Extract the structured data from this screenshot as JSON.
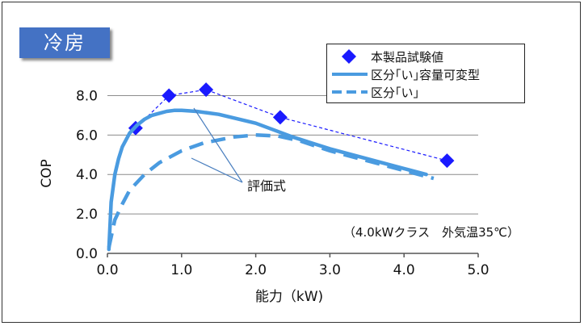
{
  "mode_badge": "冷房",
  "annotation_note": "（4.0kWクラス　外気温35℃）",
  "callout_label": "評価式",
  "legend": {
    "items": [
      {
        "label": "本製品試験値",
        "marker": "diamond",
        "color": "#1a1aff"
      },
      {
        "label": "区分｢い｣容量可変型",
        "marker": "solid-line",
        "color": "#4a9be0"
      },
      {
        "label": "区分｢い｣",
        "marker": "dashed-line",
        "color": "#4a9be0"
      }
    ]
  },
  "chart_data": {
    "type": "line",
    "xlabel": "能力（kW)",
    "ylabel": "COP",
    "xlim": [
      0,
      5
    ],
    "ylim": [
      0,
      9
    ],
    "x_ticks": [
      "0.0",
      "1.0",
      "2.0",
      "3.0",
      "4.0",
      "5.0"
    ],
    "y_ticks": [
      "0.0",
      "2.0",
      "4.0",
      "6.0",
      "8.0"
    ],
    "grid": "horizontal",
    "legend_position": "top-right",
    "series": [
      {
        "name": "本製品試験値",
        "style": "diamond-markers-dashed",
        "color": "#1a1aff",
        "points": [
          [
            0.38,
            6.35
          ],
          [
            0.83,
            8.0
          ],
          [
            1.33,
            8.3
          ],
          [
            2.33,
            6.9
          ],
          [
            4.58,
            4.7
          ]
        ]
      },
      {
        "name": "区分｢い｣容量可変型",
        "style": "solid",
        "color": "#4a9be0",
        "points": [
          [
            0.02,
            0.2
          ],
          [
            0.05,
            2.6
          ],
          [
            0.1,
            4.0
          ],
          [
            0.15,
            4.8
          ],
          [
            0.2,
            5.4
          ],
          [
            0.3,
            6.1
          ],
          [
            0.4,
            6.5
          ],
          [
            0.5,
            6.8
          ],
          [
            0.6,
            7.0
          ],
          [
            0.7,
            7.1
          ],
          [
            0.8,
            7.2
          ],
          [
            0.9,
            7.25
          ],
          [
            1.0,
            7.25
          ],
          [
            1.2,
            7.2
          ],
          [
            1.5,
            7.05
          ],
          [
            2.0,
            6.6
          ],
          [
            2.5,
            5.9
          ],
          [
            3.0,
            5.3
          ],
          [
            3.5,
            4.8
          ],
          [
            4.0,
            4.3
          ],
          [
            4.3,
            4.0
          ]
        ]
      },
      {
        "name": "区分｢い｣",
        "style": "dashed",
        "color": "#4a9be0",
        "points": [
          [
            0.02,
            0.3
          ],
          [
            0.1,
            1.7
          ],
          [
            0.2,
            2.5
          ],
          [
            0.3,
            3.2
          ],
          [
            0.5,
            4.0
          ],
          [
            0.7,
            4.6
          ],
          [
            1.0,
            5.2
          ],
          [
            1.3,
            5.6
          ],
          [
            1.7,
            5.9
          ],
          [
            2.0,
            6.0
          ],
          [
            2.3,
            5.95
          ],
          [
            2.6,
            5.7
          ],
          [
            3.0,
            5.2
          ],
          [
            3.5,
            4.7
          ],
          [
            4.0,
            4.2
          ],
          [
            4.4,
            3.8
          ]
        ]
      }
    ]
  }
}
